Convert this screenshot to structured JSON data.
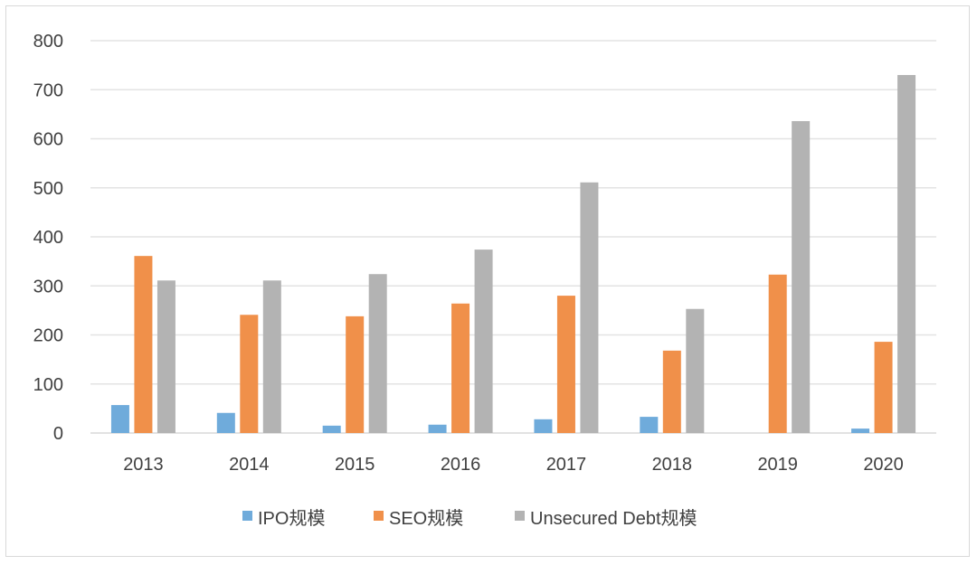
{
  "chart_data": {
    "type": "bar",
    "categories": [
      "2013",
      "2014",
      "2015",
      "2016",
      "2017",
      "2018",
      "2019",
      "2020"
    ],
    "series": [
      {
        "name": "IPO规模",
        "color": "#6fabdb",
        "values": [
          57,
          41,
          15,
          17,
          28,
          33,
          0,
          9
        ]
      },
      {
        "name": "SEO规模",
        "color": "#f0904a",
        "values": [
          361,
          241,
          238,
          264,
          280,
          168,
          323,
          186
        ]
      },
      {
        "name": "Unsecured Debt规模",
        "color": "#b3b3b3",
        "values": [
          311,
          311,
          324,
          374,
          511,
          253,
          636,
          730
        ]
      }
    ],
    "yticks": [
      "0",
      "100",
      "200",
      "300",
      "400",
      "500",
      "600",
      "700",
      "800"
    ],
    "ylim": [
      0,
      800
    ],
    "grid": true,
    "legend": "bottom"
  }
}
